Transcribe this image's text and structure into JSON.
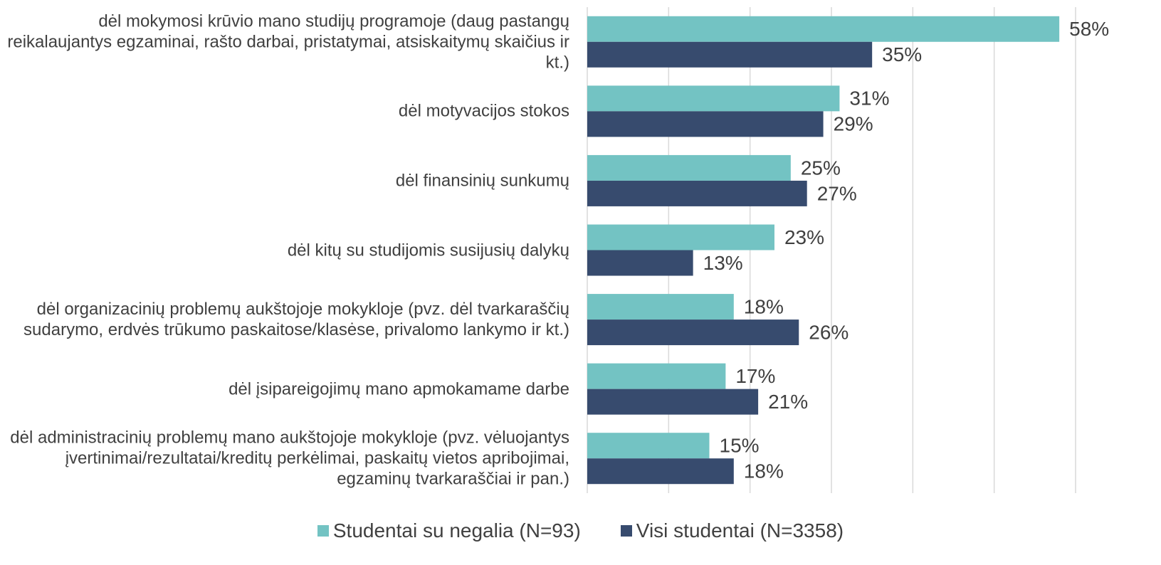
{
  "chart_data": {
    "type": "hbar",
    "categories": [
      "dėl mokymosi krūvio mano studijų programoje (daug pastangų reikalaujantys egzaminai, rašto darbai, pristatymai, atsiskaitymų skaičius ir kt.)",
      "dėl motyvacijos stokos",
      "dėl finansinių sunkumų",
      "dėl kitų su studijomis susijusių dalykų",
      "dėl organizacinių problemų aukštojoje mokykloje (pvz. dėl tvarkaraščių sudarymo, erdvės trūkumo paskaitose/klasėse, privalomo lankymo ir kt.)",
      "dėl įsipareigojimų mano apmokamame darbe",
      "dėl administracinių problemų mano aukštojoje mokykloje (pvz. vėluojantys įvertinimai/rezultatai/kreditų perkėlimai, paskaitų vietos apribojimai, egzaminų tvarkaraščiai ir pan.)"
    ],
    "series": [
      {
        "name": "Studentai su negalia (N=93)",
        "color": "#73c3c3",
        "values": [
          58,
          31,
          25,
          23,
          18,
          17,
          15
        ],
        "value_labels": [
          "58%",
          "31%",
          "25%",
          "23%",
          "18%",
          "17%",
          "15%"
        ]
      },
      {
        "name": "Visi studentai (N=3358)",
        "color": "#374b6e",
        "values": [
          35,
          29,
          27,
          13,
          26,
          21,
          18
        ],
        "value_labels": [
          "35%",
          "29%",
          "27%",
          "13%",
          "26%",
          "21%",
          "18%"
        ]
      }
    ],
    "xlim": [
      0,
      60
    ],
    "xticks": [
      0,
      10,
      20,
      30,
      40,
      50,
      60
    ],
    "grid": true,
    "legend": "bottom"
  }
}
